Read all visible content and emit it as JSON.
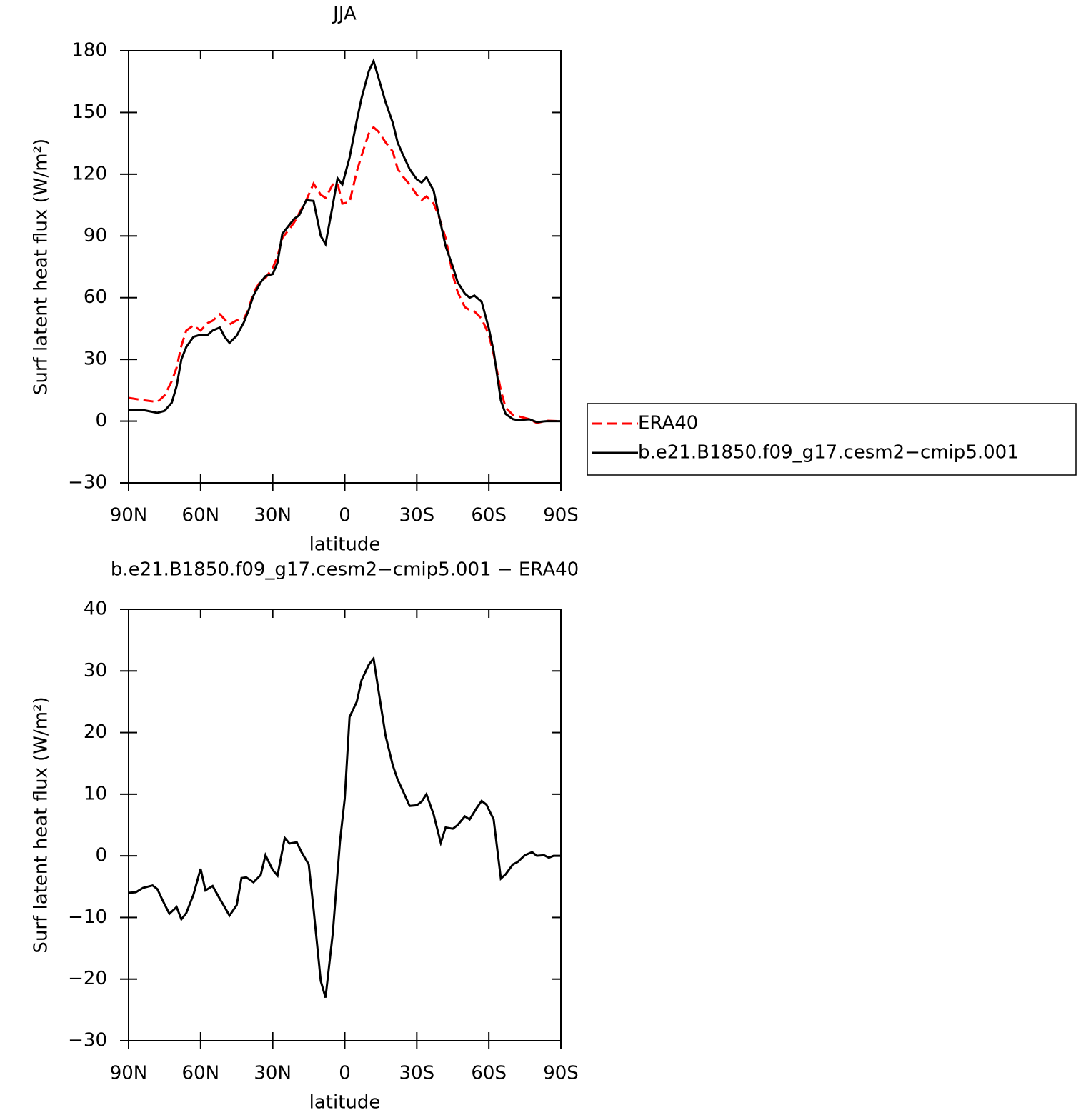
{
  "chart_data": [
    {
      "type": "line",
      "title": "JJA",
      "xlabel": "latitude",
      "ylabel": "Surf latent heat flux (W/m²)",
      "x": [
        90,
        84,
        78,
        75,
        72,
        70,
        68,
        66,
        63,
        60,
        57,
        55,
        52,
        50,
        48,
        45,
        42,
        40,
        38,
        35,
        33,
        30,
        28,
        26,
        23,
        21,
        19,
        16,
        13,
        10,
        8,
        5,
        3,
        1,
        -2,
        -5,
        -7,
        -10,
        -12,
        -14,
        -17,
        -20,
        -22,
        -24,
        -27,
        -30,
        -32,
        -34,
        -37,
        -39,
        -42,
        -45,
        -47,
        -50,
        -52,
        -54,
        -57,
        -60,
        -62,
        -65,
        -67,
        -70,
        -72,
        -77,
        -80,
        -84,
        -90
      ],
      "series": [
        {
          "name": "ERA40",
          "color": "#ff0000",
          "linestyle": "dashed",
          "values": [
            11.3,
            10.2,
            9.3,
            12.5,
            19.5,
            26,
            36.6,
            44,
            46.5,
            44,
            47.7,
            48.8,
            52,
            49.5,
            47,
            49,
            49.5,
            54.7,
            62.5,
            68.2,
            69.6,
            74.5,
            80,
            89,
            93.5,
            96.7,
            101,
            107.4,
            115.4,
            110,
            108.5,
            115,
            115.7,
            105.7,
            106.4,
            121.3,
            129,
            139.7,
            142.8,
            140.7,
            135.5,
            131,
            122.7,
            119.2,
            115,
            110,
            107.4,
            109.2,
            105.7,
            100.1,
            89,
            71,
            62.7,
            55.4,
            54,
            53.3,
            49.8,
            42,
            32.5,
            15,
            6.5,
            3,
            2.5,
            0.9,
            -0.9,
            0.2,
            0
          ]
        },
        {
          "name": "b.e21.B1850.f09_g17.cesm2−cmip5.001",
          "color": "#000000",
          "linestyle": "solid",
          "values": [
            5.4,
            5.4,
            4,
            5,
            9,
            17,
            30,
            36,
            41,
            42,
            42,
            44,
            45.5,
            41,
            38,
            41.5,
            48,
            54,
            61,
            67.5,
            70.5,
            71.5,
            77,
            91,
            95.5,
            98.4,
            100,
            107.4,
            107,
            90,
            86,
            105,
            118,
            115,
            128,
            146,
            157,
            170,
            175,
            167,
            155,
            145,
            135.5,
            130,
            122.5,
            117.5,
            116,
            118.5,
            112,
            101,
            85,
            75,
            67.5,
            62,
            60,
            61,
            58,
            45,
            34,
            10,
            3.5,
            1,
            0.5,
            0.9,
            -0.5,
            0,
            0
          ]
        }
      ],
      "xlim": [
        90,
        -90
      ],
      "xticks": [
        {
          "value": 90,
          "label": "90N"
        },
        {
          "value": 60,
          "label": "60N"
        },
        {
          "value": 30,
          "label": "30N"
        },
        0,
        {
          "value": -30,
          "label": "30S"
        },
        {
          "value": -60,
          "label": "60S"
        },
        {
          "value": -90,
          "label": "90S"
        }
      ],
      "ylim": [
        -30,
        180
      ],
      "yticks": [
        {
          "value": -30,
          "label": "−30"
        },
        0,
        30,
        60,
        90,
        120,
        150,
        180
      ],
      "legend": "right"
    },
    {
      "type": "line",
      "title": "b.e21.B1850.f09_g17.cesm2−cmip5.001 − ERA40",
      "xlabel": "latitude",
      "ylabel": "Surf latent heat flux (W/m²)",
      "x": [
        90,
        87,
        84,
        80,
        78,
        76,
        73,
        70,
        68,
        66,
        63,
        60,
        58,
        55,
        52,
        50,
        48,
        45,
        43,
        41,
        38,
        35,
        33,
        30,
        28,
        25,
        23,
        20,
        18,
        15,
        13,
        10,
        8,
        5,
        2,
        0,
        -2,
        -5,
        -7,
        -10,
        -12,
        -14,
        -17,
        -20,
        -22,
        -24,
        -27,
        -30,
        -32,
        -34,
        -37,
        -40,
        -42,
        -45,
        -47,
        -50,
        -52,
        -55,
        -57,
        -59,
        -62,
        -65,
        -67,
        -70,
        -72,
        -75,
        -78,
        -80,
        -83,
        -85,
        -87,
        -90
      ],
      "values": [
        -6,
        -5.9,
        -5.2,
        -4.8,
        -5.4,
        -7.1,
        -9.4,
        -8.3,
        -10.3,
        -9.3,
        -6.3,
        -2.1,
        -5.6,
        -4.9,
        -7,
        -8.3,
        -9.7,
        -8,
        -3.6,
        -3.5,
        -4.3,
        -3.1,
        0.1,
        -2.3,
        -3.2,
        2.9,
        2,
        2.2,
        0.6,
        -1.4,
        -8.6,
        -20.3,
        -23,
        -12.6,
        2.3,
        9.3,
        22.5,
        25,
        28.5,
        31,
        32,
        26.9,
        19.5,
        14.7,
        12.4,
        10.7,
        8.1,
        8.2,
        8.8,
        10,
        6.7,
        2.1,
        4.6,
        4.4,
        5,
        6.4,
        5.9,
        7.8,
        8.9,
        8.3,
        5.9,
        -3.7,
        -3,
        -1.4,
        -1,
        0.1,
        0.6,
        0,
        0.1,
        -0.3,
        0,
        0
      ],
      "color": "#000000",
      "xlim": [
        90,
        -90
      ],
      "xticks": [
        {
          "value": 90,
          "label": "90N"
        },
        {
          "value": 60,
          "label": "60N"
        },
        {
          "value": 30,
          "label": "30N"
        },
        0,
        {
          "value": -30,
          "label": "30S"
        },
        {
          "value": -60,
          "label": "60S"
        },
        {
          "value": -90,
          "label": "90S"
        }
      ],
      "ylim": [
        -30,
        40
      ],
      "yticks": [
        {
          "value": -30,
          "label": "−30"
        },
        {
          "value": -20,
          "label": "−20"
        },
        {
          "value": -10,
          "label": "−10"
        },
        0,
        10,
        20,
        30,
        40
      ]
    }
  ]
}
